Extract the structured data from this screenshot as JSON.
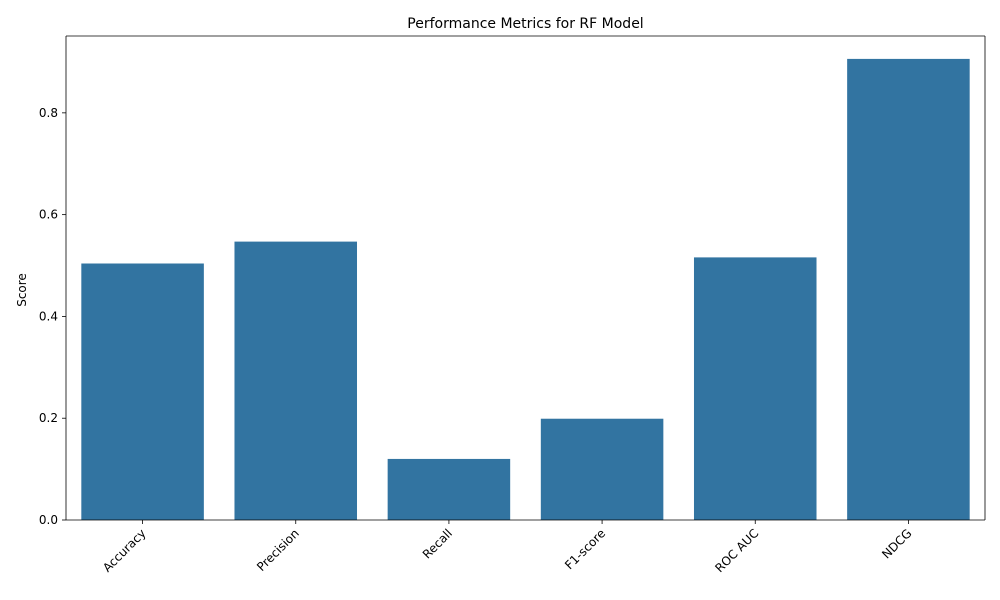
{
  "chart_data": {
    "type": "bar",
    "title": "Performance Metrics for RF Model",
    "xlabel": "",
    "ylabel": "Score",
    "categories": [
      "Accuracy",
      "Precision",
      "Recall",
      "F1-score",
      "ROC AUC",
      "NDCG"
    ],
    "values": [
      0.504,
      0.547,
      0.12,
      0.199,
      0.516,
      0.906
    ],
    "ylim": [
      0,
      0.951
    ],
    "yticks": [
      0.0,
      0.2,
      0.4,
      0.6,
      0.8
    ],
    "ytick_labels": [
      "0.0",
      "0.2",
      "0.4",
      "0.6",
      "0.8"
    ],
    "grid": false,
    "legend": "none",
    "bar_color": "#3274a1"
  }
}
